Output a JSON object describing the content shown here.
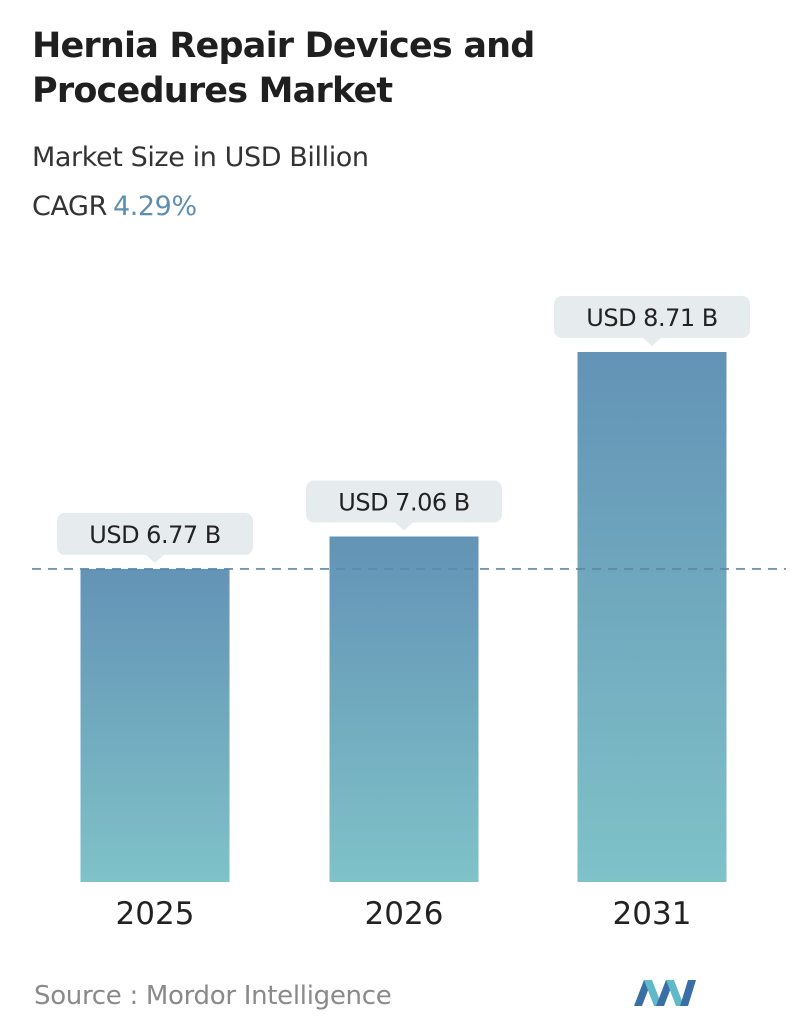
{
  "header": {
    "title": "Hernia Repair Devices and Procedures Market",
    "subtitle": "Market Size in USD Billion",
    "cagr_label": "CAGR",
    "cagr_value": "4.29%"
  },
  "footer": {
    "source": "Source :  Mordor Intelligence",
    "logo_icon": "mordor-intelligence-logo-icon"
  },
  "colors": {
    "bar_top": "#6393b6",
    "bar_bottom": "#7fc2c8",
    "label_bg": "#e6eced",
    "dashed_line": "#5d86a6",
    "cagr_accent": "#5e8fb2"
  },
  "chart_data": {
    "type": "bar",
    "categories": [
      "2025",
      "2026",
      "2031"
    ],
    "values": [
      6.77,
      7.06,
      8.71
    ],
    "data_labels": [
      "USD 6.77 B",
      "USD 7.06 B",
      "USD 8.71 B"
    ],
    "title": "Hernia Repair Devices and Procedures Market",
    "subtitle": "Market Size in USD Billion",
    "xlabel": "",
    "ylabel": "",
    "reference_line": 6.77,
    "grid": false,
    "legend": "none"
  }
}
